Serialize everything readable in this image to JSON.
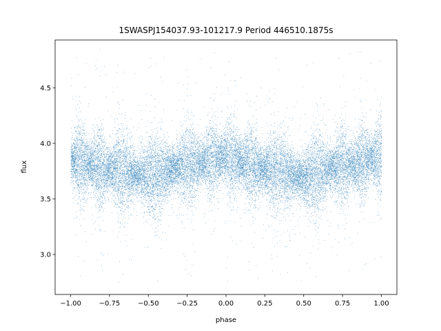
{
  "chart_data": {
    "type": "scatter",
    "title": "1SWASPJ154037.93-101217.9 Period 446510.1875s",
    "xlabel": "phase",
    "ylabel": "flux",
    "xlim": [
      -1.1,
      1.1
    ],
    "ylim": [
      2.64,
      4.93
    ],
    "x_ticks": [
      -1.0,
      -0.75,
      -0.5,
      -0.25,
      0.0,
      0.25,
      0.5,
      0.75,
      1.0
    ],
    "x_tick_labels": [
      "−1.00",
      "−0.75",
      "−0.50",
      "−0.25",
      "0.00",
      "0.25",
      "0.50",
      "0.75",
      "1.00"
    ],
    "y_ticks": [
      3.0,
      3.5,
      4.0,
      4.5
    ],
    "y_tick_labels": [
      "3.0",
      "3.5",
      "4.0",
      "4.5"
    ],
    "grid": false,
    "marker_color": "#1f77b4",
    "series": [
      {
        "phase_range": [
          -1.0,
          1.0
        ],
        "approx_point_count": 24000,
        "trend_phase": [
          -1.0,
          -0.75,
          -0.5,
          -0.25,
          0.0,
          0.25,
          0.5,
          0.75,
          1.0
        ],
        "trend_flux": [
          3.84,
          3.77,
          3.7,
          3.8,
          3.87,
          3.77,
          3.7,
          3.8,
          3.87
        ],
        "typical_scatter": 0.13,
        "flux_extent": [
          2.75,
          4.85
        ]
      }
    ]
  }
}
